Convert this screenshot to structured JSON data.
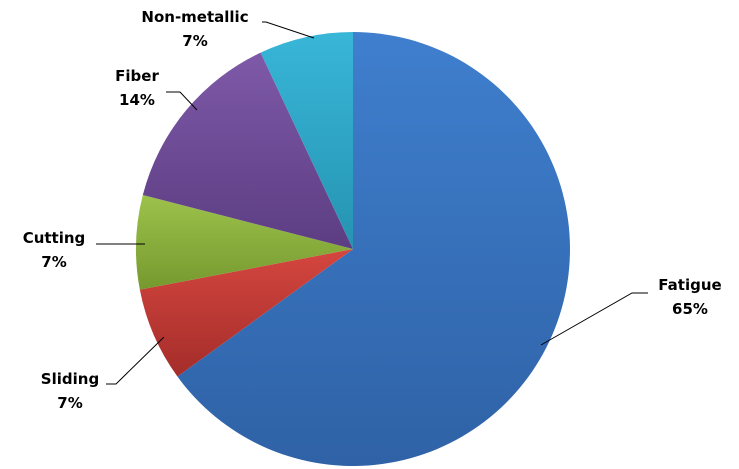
{
  "chart_data": {
    "type": "pie",
    "title": "",
    "start_angle_deg": 0,
    "direction": "clockwise",
    "legend": "none",
    "slices": [
      {
        "label": "Fatigue",
        "value": 65,
        "value_label": "65%",
        "color": "#3A74C0"
      },
      {
        "label": "Sliding",
        "value": 7,
        "value_label": "7%",
        "color": "#C23B38"
      },
      {
        "label": "Cutting",
        "value": 7,
        "value_label": "7%",
        "color": "#8DB23F"
      },
      {
        "label": "Fiber",
        "value": 14,
        "value_label": "14%",
        "color": "#6E4C96"
      },
      {
        "label": "Non-metallic",
        "value": 7,
        "value_label": "7%",
        "color": "#2FA9C9"
      }
    ]
  }
}
